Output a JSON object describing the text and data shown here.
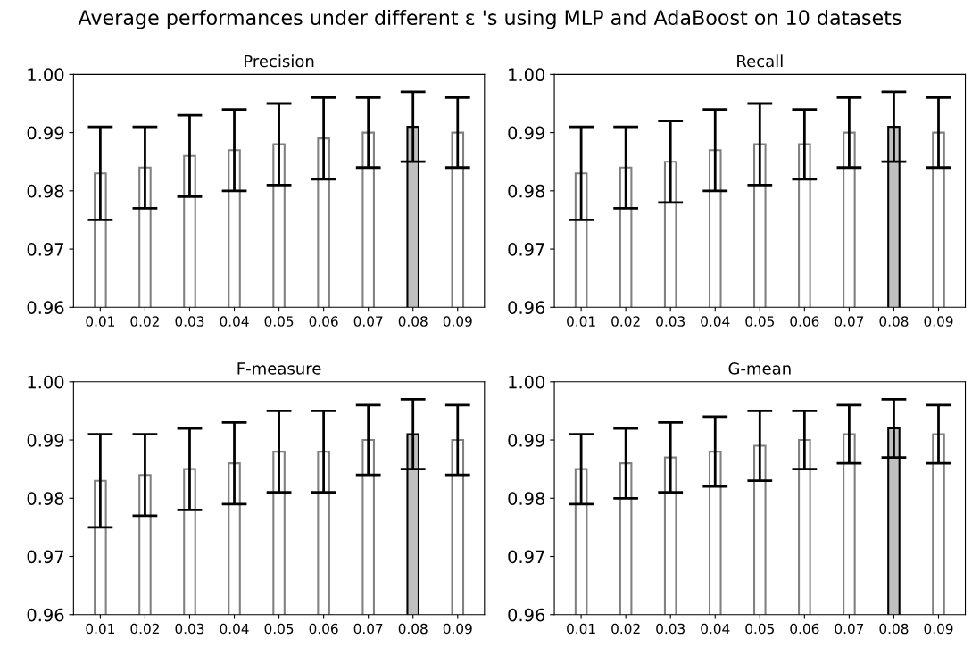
{
  "chart_data": [
    {
      "type": "bar",
      "title": "Precision",
      "annotations": [
        "Average performances under different ε 's using MLP and AdaBoost on 10 datasets"
      ],
      "categories": [
        "0.01",
        "0.02",
        "0.03",
        "0.04",
        "0.05",
        "0.06",
        "0.07",
        "0.08",
        "0.09"
      ],
      "values": [
        0.983,
        0.984,
        0.986,
        0.987,
        0.988,
        0.989,
        0.99,
        0.991,
        0.99
      ],
      "errors": [
        [
          0.975,
          0.991
        ],
        [
          0.977,
          0.991
        ],
        [
          0.979,
          0.993
        ],
        [
          0.98,
          0.994
        ],
        [
          0.981,
          0.995
        ],
        [
          0.982,
          0.996
        ],
        [
          0.984,
          0.996
        ],
        [
          0.985,
          0.997
        ],
        [
          0.984,
          0.996
        ]
      ],
      "colors": [
        "#ffffff",
        "#ffffff",
        "#ffffff",
        "#ffffff",
        "#ffffff",
        "#ffffff",
        "#ffffff",
        "#c0c0c0",
        "#ffffff"
      ],
      "ylim": [
        0.96,
        1.0
      ],
      "yticks": [
        {
          "value": 0.96,
          "label": "0.96"
        },
        {
          "value": 0.97,
          "label": "0.97"
        },
        {
          "value": 0.98,
          "label": "0.98"
        },
        {
          "value": 0.99,
          "label": "0.99"
        },
        {
          "value": 1.0,
          "label": "1.00"
        }
      ],
      "grid": false
    },
    {
      "type": "bar",
      "title": "Recall",
      "categories": [
        "0.01",
        "0.02",
        "0.03",
        "0.04",
        "0.05",
        "0.06",
        "0.07",
        "0.08",
        "0.09"
      ],
      "values": [
        0.983,
        0.984,
        0.985,
        0.987,
        0.988,
        0.988,
        0.99,
        0.991,
        0.99
      ],
      "errors": [
        [
          0.975,
          0.991
        ],
        [
          0.977,
          0.991
        ],
        [
          0.978,
          0.992
        ],
        [
          0.98,
          0.994
        ],
        [
          0.981,
          0.995
        ],
        [
          0.982,
          0.994
        ],
        [
          0.984,
          0.996
        ],
        [
          0.985,
          0.997
        ],
        [
          0.984,
          0.996
        ]
      ],
      "colors": [
        "#ffffff",
        "#ffffff",
        "#ffffff",
        "#ffffff",
        "#ffffff",
        "#ffffff",
        "#ffffff",
        "#c0c0c0",
        "#ffffff"
      ],
      "ylim": [
        0.96,
        1.0
      ],
      "yticks": [
        {
          "value": 0.96,
          "label": "0.96"
        },
        {
          "value": 0.97,
          "label": "0.97"
        },
        {
          "value": 0.98,
          "label": "0.98"
        },
        {
          "value": 0.99,
          "label": "0.99"
        },
        {
          "value": 1.0,
          "label": "1.00"
        }
      ],
      "grid": false
    },
    {
      "type": "bar",
      "title": "F-measure",
      "categories": [
        "0.01",
        "0.02",
        "0.03",
        "0.04",
        "0.05",
        "0.06",
        "0.07",
        "0.08",
        "0.09"
      ],
      "values": [
        0.983,
        0.984,
        0.985,
        0.986,
        0.988,
        0.988,
        0.99,
        0.991,
        0.99
      ],
      "errors": [
        [
          0.975,
          0.991
        ],
        [
          0.977,
          0.991
        ],
        [
          0.978,
          0.992
        ],
        [
          0.979,
          0.993
        ],
        [
          0.981,
          0.995
        ],
        [
          0.981,
          0.995
        ],
        [
          0.984,
          0.996
        ],
        [
          0.985,
          0.997
        ],
        [
          0.984,
          0.996
        ]
      ],
      "colors": [
        "#ffffff",
        "#ffffff",
        "#ffffff",
        "#ffffff",
        "#ffffff",
        "#ffffff",
        "#ffffff",
        "#c0c0c0",
        "#ffffff"
      ],
      "ylim": [
        0.96,
        1.0
      ],
      "yticks": [
        {
          "value": 0.96,
          "label": "0.96"
        },
        {
          "value": 0.97,
          "label": "0.97"
        },
        {
          "value": 0.98,
          "label": "0.98"
        },
        {
          "value": 0.99,
          "label": "0.99"
        },
        {
          "value": 1.0,
          "label": "1.00"
        }
      ],
      "grid": false
    },
    {
      "type": "bar",
      "title": "G-mean",
      "categories": [
        "0.01",
        "0.02",
        "0.03",
        "0.04",
        "0.05",
        "0.06",
        "0.07",
        "0.08",
        "0.09"
      ],
      "values": [
        0.985,
        0.986,
        0.987,
        0.988,
        0.989,
        0.99,
        0.991,
        0.992,
        0.991
      ],
      "errors": [
        [
          0.979,
          0.991
        ],
        [
          0.98,
          0.992
        ],
        [
          0.981,
          0.993
        ],
        [
          0.982,
          0.994
        ],
        [
          0.983,
          0.995
        ],
        [
          0.985,
          0.995
        ],
        [
          0.986,
          0.996
        ],
        [
          0.987,
          0.997
        ],
        [
          0.986,
          0.996
        ]
      ],
      "colors": [
        "#ffffff",
        "#ffffff",
        "#ffffff",
        "#ffffff",
        "#ffffff",
        "#ffffff",
        "#ffffff",
        "#c0c0c0",
        "#ffffff"
      ],
      "ylim": [
        0.96,
        1.0
      ],
      "yticks": [
        {
          "value": 0.96,
          "label": "0.96"
        },
        {
          "value": 0.97,
          "label": "0.97"
        },
        {
          "value": 0.98,
          "label": "0.98"
        },
        {
          "value": 0.99,
          "label": "0.99"
        },
        {
          "value": 1.0,
          "label": "1.00"
        }
      ],
      "grid": false
    }
  ]
}
